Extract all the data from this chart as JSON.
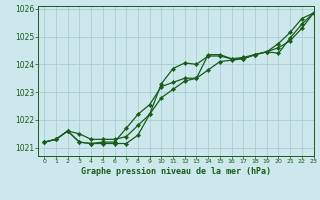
{
  "title": "Graphe pression niveau de la mer (hPa)",
  "xlim": [
    -0.5,
    23
  ],
  "ylim": [
    1020.7,
    1026.1
  ],
  "xticks": [
    0,
    1,
    2,
    3,
    4,
    5,
    6,
    7,
    8,
    9,
    10,
    11,
    12,
    13,
    14,
    15,
    16,
    17,
    18,
    19,
    20,
    21,
    22,
    23
  ],
  "yticks": [
    1021,
    1022,
    1023,
    1024,
    1025,
    1026
  ],
  "bg_color": "#cce8ec",
  "line_color": "#1a5c1a",
  "grid_color": "#aacdd4",
  "series1_x": [
    0,
    1,
    2,
    3,
    4,
    5,
    6,
    7,
    8,
    9,
    10,
    11,
    12,
    13,
    14,
    15,
    16,
    17,
    18,
    19,
    20,
    21,
    22,
    23
  ],
  "series1_y": [
    1021.2,
    1021.3,
    1021.6,
    1021.5,
    1021.3,
    1021.3,
    1021.3,
    1021.4,
    1021.8,
    1022.2,
    1022.8,
    1023.1,
    1023.4,
    1023.5,
    1023.8,
    1024.1,
    1024.15,
    1024.2,
    1024.35,
    1024.45,
    1024.6,
    1024.85,
    1025.3,
    1025.85
  ],
  "series2_x": [
    0,
    1,
    2,
    3,
    4,
    5,
    6,
    7,
    8,
    9,
    10,
    11,
    12,
    13,
    14,
    15,
    16,
    17,
    18,
    19,
    20,
    21,
    22,
    23
  ],
  "series2_y": [
    1021.2,
    1021.3,
    1021.6,
    1021.2,
    1021.15,
    1021.15,
    1021.15,
    1021.15,
    1021.45,
    1022.2,
    1023.3,
    1023.85,
    1024.05,
    1024.0,
    1024.3,
    1024.3,
    1024.2,
    1024.25,
    1024.35,
    1024.45,
    1024.75,
    1025.15,
    1025.65,
    1025.85
  ],
  "series3_x": [
    0,
    1,
    2,
    3,
    4,
    5,
    6,
    7,
    8,
    9,
    10,
    11,
    12,
    13,
    14,
    15,
    16,
    17,
    18,
    19,
    20,
    21,
    22,
    23
  ],
  "series3_y": [
    1021.2,
    1021.3,
    1021.6,
    1021.2,
    1021.15,
    1021.2,
    1021.2,
    1021.7,
    1022.2,
    1022.55,
    1023.2,
    1023.35,
    1023.5,
    1023.5,
    1024.35,
    1024.35,
    1024.2,
    1024.2,
    1024.35,
    1024.45,
    1024.4,
    1024.95,
    1025.45,
    1025.85
  ]
}
